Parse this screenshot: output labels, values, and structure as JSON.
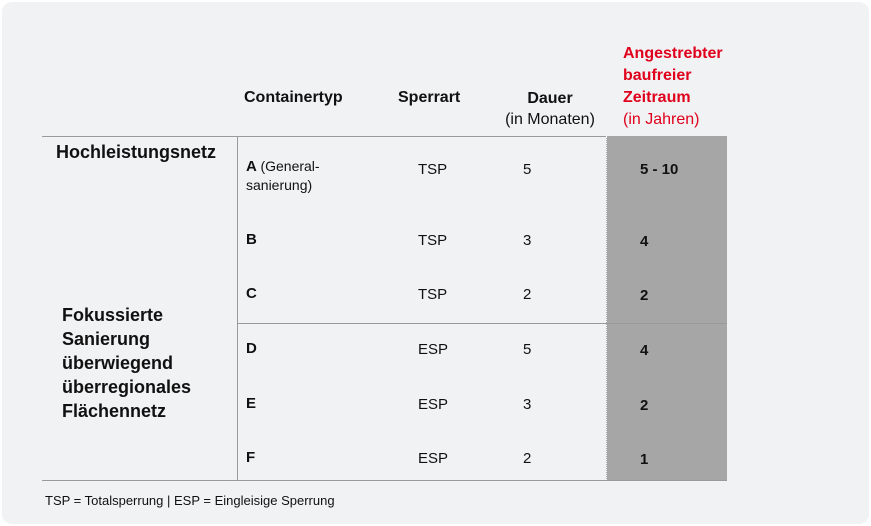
{
  "headers": {
    "containertyp": "Containertyp",
    "sperrart": "Sperrart",
    "dauer": "Dauer",
    "dauer_sub": "(in Monaten)",
    "zeitraum_line1": "Angestrebter",
    "zeitraum_line2": "baufreier",
    "zeitraum_line3": "Zeitraum",
    "zeitraum_sub": "(in Jahren)"
  },
  "groups": {
    "hochleistung": "Hochleistungsnetz",
    "fokus_line1": "Fokussierte",
    "fokus_line2": "Sanierung",
    "fokus_line3": "überwiegend",
    "fokus_line4": "überregionales",
    "fokus_line5": "Flächennetz"
  },
  "rows": [
    {
      "type": "A",
      "type_note": "(General-",
      "type_note2": "sanierung)",
      "sperrart": "TSP",
      "dauer": "5",
      "zeitraum": "5 - 10"
    },
    {
      "type": "B",
      "sperrart": "TSP",
      "dauer": "3",
      "zeitraum": "4"
    },
    {
      "type": "C",
      "sperrart": "TSP",
      "dauer": "2",
      "zeitraum": "2"
    },
    {
      "type": "D",
      "sperrart": "ESP",
      "dauer": "5",
      "zeitraum": "4"
    },
    {
      "type": "E",
      "sperrart": "ESP",
      "dauer": "3",
      "zeitraum": "2"
    },
    {
      "type": "F",
      "sperrart": "ESP",
      "dauer": "2",
      "zeitraum": "1"
    }
  ],
  "footnote": "TSP = Totalsperrung | ESP = Eingleisige Sperrung",
  "colors": {
    "accent": "#e0001b",
    "highlight_column": "#a6a6a6",
    "background": "#f1f2f4"
  }
}
